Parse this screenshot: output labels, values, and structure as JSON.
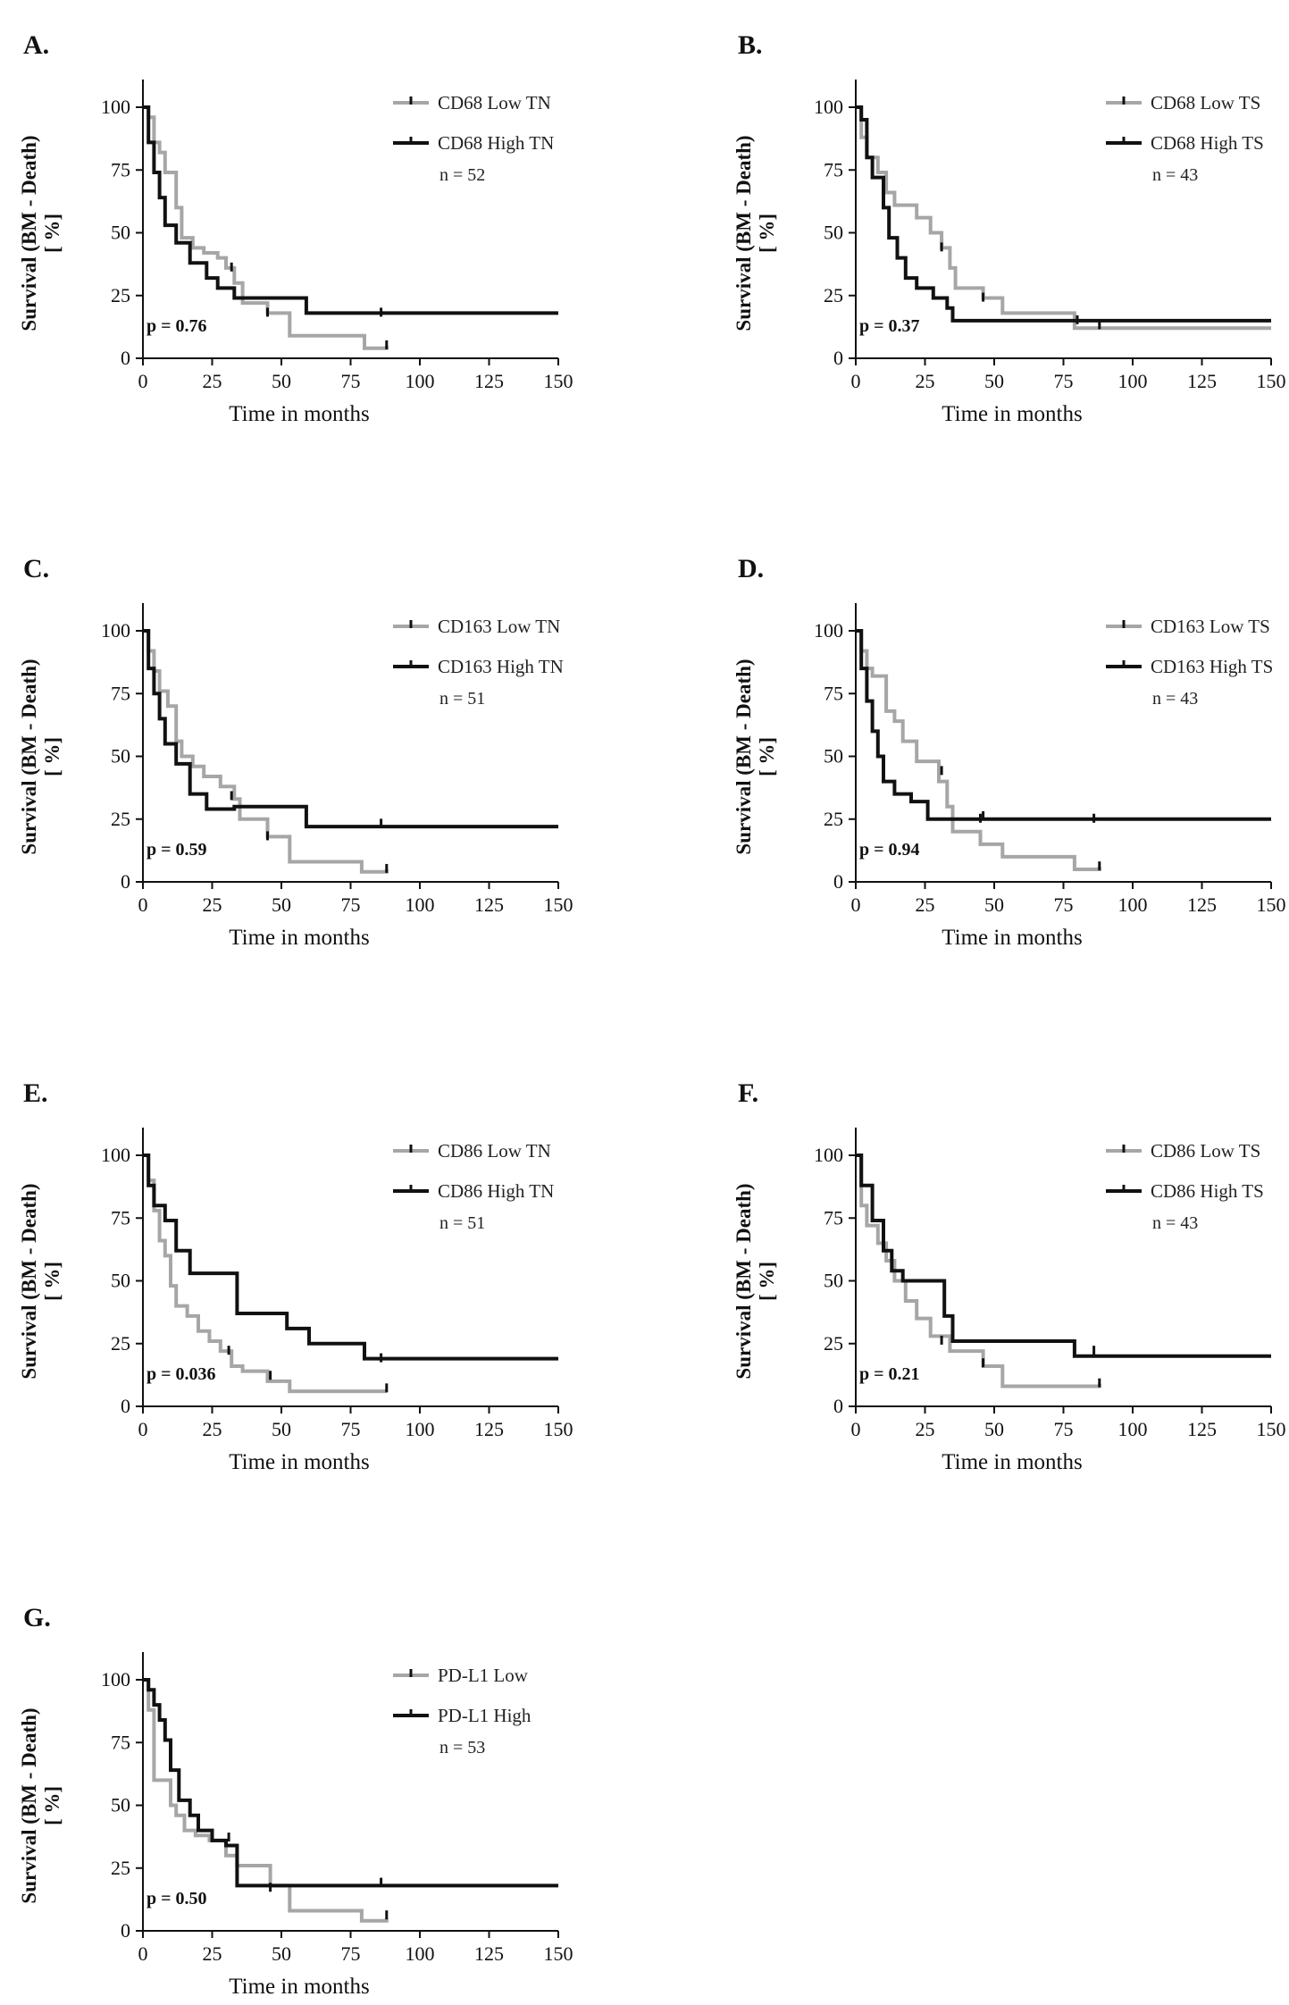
{
  "figure": {
    "axis": {
      "xlabel": "Time in months",
      "ylabel_line1": "Survival (BM - Death)",
      "ylabel_line2": "[ %]",
      "xticks": [
        0,
        25,
        50,
        75,
        100,
        125,
        150
      ],
      "yticks": [
        0,
        25,
        50,
        75,
        100
      ],
      "xlim": [
        0,
        150
      ],
      "ylim": [
        0,
        110
      ]
    },
    "colors": {
      "low": "#a6a6a6",
      "high": "#111111",
      "axis": "#111111"
    }
  },
  "chart_data": [
    {
      "panel": "A.",
      "type": "line",
      "title": "",
      "xlabel": "Time in months",
      "ylabel": "Survival (BM - Death) [ %]",
      "legend": [
        "CD68 Low TN",
        "CD68 High TN"
      ],
      "n_text": "n = 52",
      "p_text": "p = 0.76",
      "series": [
        {
          "name": "CD68 Low TN",
          "x": [
            0,
            2,
            4,
            6,
            8,
            12,
            14,
            18,
            22,
            27,
            30,
            33,
            36,
            45,
            53,
            80,
            88
          ],
          "y": [
            100,
            96,
            86,
            82,
            74,
            60,
            48,
            44,
            42,
            40,
            36,
            30,
            22,
            18,
            9,
            4,
            5
          ],
          "censored": [
            [
              32,
              36
            ],
            [
              45,
              18
            ],
            [
              88,
              5
            ]
          ]
        },
        {
          "name": "CD68 High TN",
          "x": [
            0,
            2,
            4,
            6,
            8,
            12,
            17,
            23,
            27,
            33,
            59,
            150
          ],
          "y": [
            100,
            86,
            74,
            64,
            53,
            46,
            38,
            32,
            28,
            24,
            18,
            18
          ],
          "censored": [
            [
              86,
              18
            ]
          ]
        }
      ]
    },
    {
      "panel": "B.",
      "type": "line",
      "title": "",
      "xlabel": "Time in months",
      "ylabel": "Survival (BM - Death) [ %]",
      "legend": [
        "CD68 Low TS",
        "CD68 High TS"
      ],
      "n_text": "n = 43",
      "p_text": "p = 0.37",
      "series": [
        {
          "name": "CD68 Low TS",
          "x": [
            0,
            2,
            4,
            8,
            11,
            14,
            22,
            27,
            31,
            34,
            36,
            46,
            53,
            79,
            150
          ],
          "y": [
            100,
            88,
            80,
            74,
            66,
            61,
            56,
            50,
            44,
            36,
            28,
            24,
            18,
            12,
            12
          ],
          "censored": [
            [
              31,
              44
            ],
            [
              46,
              24
            ],
            [
              80,
              15
            ]
          ]
        },
        {
          "name": "CD68 High TS",
          "x": [
            0,
            2,
            4,
            6,
            10,
            12,
            15,
            18,
            22,
            28,
            33,
            35,
            150
          ],
          "y": [
            100,
            95,
            80,
            72,
            60,
            48,
            40,
            32,
            28,
            24,
            20,
            15,
            15
          ],
          "censored": [
            [
              88,
              13
            ]
          ]
        }
      ]
    },
    {
      "panel": "C.",
      "type": "line",
      "title": "",
      "xlabel": "Time in months",
      "ylabel": "Survival (BM - Death) [ %]",
      "legend": [
        "CD163 Low TN",
        "CD163 High TN"
      ],
      "n_text": "n = 51",
      "p_text": "p = 0.59",
      "series": [
        {
          "name": "CD163 Low TN",
          "x": [
            0,
            2,
            4,
            6,
            9,
            12,
            14,
            18,
            22,
            28,
            33,
            35,
            45,
            53,
            79,
            88
          ],
          "y": [
            100,
            92,
            84,
            76,
            70,
            56,
            50,
            46,
            42,
            38,
            33,
            25,
            18,
            8,
            4,
            5
          ],
          "censored": [
            [
              32,
              34
            ],
            [
              45,
              18
            ],
            [
              88,
              5
            ]
          ]
        },
        {
          "name": "CD163 High TN",
          "x": [
            0,
            2,
            4,
            6,
            8,
            12,
            17,
            23,
            33,
            59,
            150
          ],
          "y": [
            100,
            85,
            75,
            65,
            55,
            47,
            35,
            29,
            30,
            22,
            22
          ],
          "censored": [
            [
              86,
              23
            ]
          ]
        }
      ]
    },
    {
      "panel": "D.",
      "type": "line",
      "title": "",
      "xlabel": "Time in months",
      "ylabel": "Survival (BM - Death) [ %]",
      "legend": [
        "CD163 Low TS",
        "CD163 High TS"
      ],
      "n_text": "n = 43",
      "p_text": "p = 0.94",
      "series": [
        {
          "name": "CD163 Low TS",
          "x": [
            0,
            2,
            4,
            6,
            11,
            14,
            17,
            22,
            30,
            33,
            35,
            45,
            53,
            79,
            88
          ],
          "y": [
            100,
            92,
            85,
            82,
            68,
            64,
            56,
            48,
            40,
            30,
            20,
            15,
            10,
            5,
            6
          ],
          "censored": [
            [
              31,
              44
            ],
            [
              46,
              26
            ],
            [
              88,
              6
            ]
          ]
        },
        {
          "name": "CD163 High TS",
          "x": [
            0,
            2,
            4,
            6,
            8,
            10,
            14,
            20,
            26,
            150
          ],
          "y": [
            100,
            85,
            72,
            60,
            50,
            40,
            35,
            32,
            25,
            25
          ],
          "censored": [
            [
              45,
              25
            ],
            [
              86,
              25
            ]
          ]
        }
      ]
    },
    {
      "panel": "E.",
      "type": "line",
      "title": "",
      "xlabel": "Time in months",
      "ylabel": "Survival (BM - Death) [ %]",
      "legend": [
        "CD86 Low TN",
        "CD86 High TN"
      ],
      "n_text": "n = 51",
      "p_text": "p = 0.036",
      "series": [
        {
          "name": "CD86 Low TN",
          "x": [
            0,
            2,
            4,
            6,
            8,
            10,
            12,
            16,
            20,
            24,
            28,
            32,
            36,
            45,
            53,
            88
          ],
          "y": [
            100,
            90,
            78,
            66,
            60,
            48,
            40,
            36,
            30,
            26,
            22,
            16,
            14,
            10,
            6,
            6
          ],
          "censored": [
            [
              31,
              22
            ],
            [
              46,
              12
            ],
            [
              88,
              7
            ]
          ]
        },
        {
          "name": "CD86 High TN",
          "x": [
            0,
            2,
            4,
            8,
            12,
            17,
            34,
            52,
            60,
            80,
            150
          ],
          "y": [
            100,
            88,
            80,
            74,
            62,
            53,
            37,
            31,
            25,
            19,
            19
          ],
          "censored": [
            [
              86,
              19
            ]
          ]
        }
      ]
    },
    {
      "panel": "F.",
      "type": "line",
      "title": "",
      "xlabel": "Time in months",
      "ylabel": "Survival (BM - Death) [ %]",
      "legend": [
        "CD86 Low TS",
        "CD86 High TS"
      ],
      "n_text": "n = 43",
      "p_text": "p = 0.21",
      "series": [
        {
          "name": "CD86 Low TS",
          "x": [
            0,
            2,
            4,
            8,
            11,
            14,
            18,
            22,
            27,
            34,
            46,
            53,
            88
          ],
          "y": [
            100,
            80,
            72,
            65,
            58,
            50,
            42,
            35,
            28,
            22,
            16,
            8,
            9
          ],
          "censored": [
            [
              31,
              26
            ],
            [
              46,
              17
            ],
            [
              88,
              9
            ]
          ]
        },
        {
          "name": "CD86 High TS",
          "x": [
            0,
            2,
            6,
            10,
            13,
            17,
            32,
            35,
            79,
            150
          ],
          "y": [
            100,
            88,
            74,
            62,
            54,
            50,
            36,
            26,
            20,
            20
          ],
          "censored": [
            [
              86,
              22
            ]
          ]
        }
      ]
    },
    {
      "panel": "G.",
      "type": "line",
      "title": "",
      "xlabel": "Time in months",
      "ylabel": "Survival (BM - Death) [ %]",
      "legend": [
        "PD-L1 Low",
        "PD-L1 High"
      ],
      "n_text": "n = 53",
      "p_text": "p = 0.50",
      "series": [
        {
          "name": "PD-L1 Low",
          "x": [
            0,
            2,
            4,
            10,
            12,
            15,
            19,
            24,
            30,
            34,
            46,
            53,
            79,
            88
          ],
          "y": [
            100,
            88,
            60,
            50,
            46,
            40,
            38,
            36,
            30,
            26,
            18,
            8,
            4,
            5
          ],
          "censored": [
            [
              31,
              37
            ],
            [
              46,
              17
            ],
            [
              88,
              6
            ]
          ]
        },
        {
          "name": "PD-L1 High",
          "x": [
            0,
            2,
            4,
            6,
            8,
            10,
            13,
            17,
            20,
            25,
            30,
            34,
            150
          ],
          "y": [
            100,
            96,
            90,
            84,
            76,
            64,
            52,
            46,
            40,
            36,
            34,
            18,
            18
          ],
          "censored": [
            [
              86,
              19
            ]
          ]
        }
      ]
    }
  ]
}
